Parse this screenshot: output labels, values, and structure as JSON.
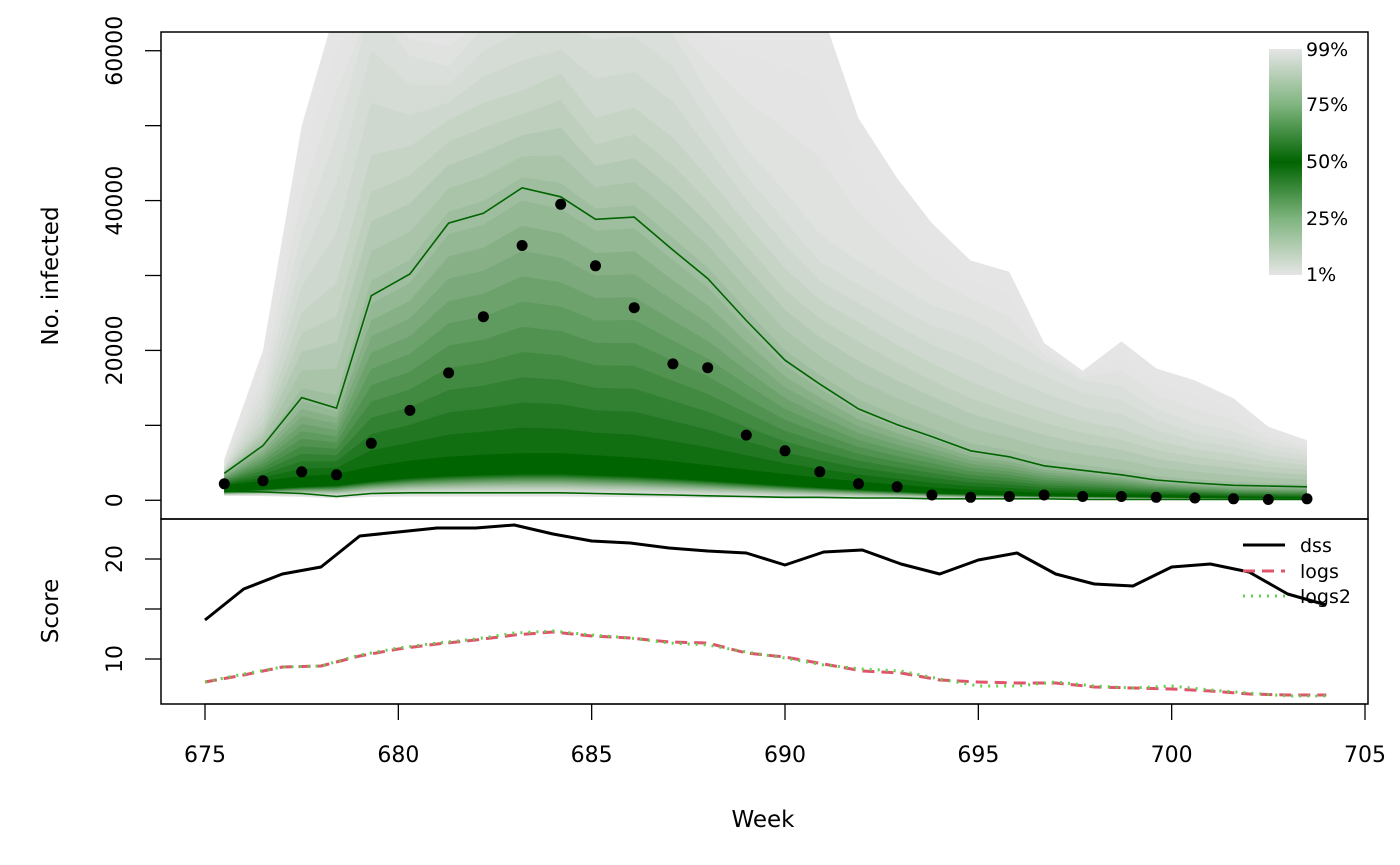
{
  "chart_data": [
    {
      "type": "area",
      "panel": "fan",
      "ylabel": "No. infected",
      "ylim": [
        -2500,
        62500
      ],
      "y_ticks": [
        0,
        20000,
        40000,
        60000
      ],
      "y_tick_labels": [
        "0",
        "20000",
        "40000",
        "60000"
      ],
      "x": [
        675.5,
        676.5,
        677.5,
        678.4,
        679.3,
        680.3,
        681.3,
        682.2,
        683.2,
        684.2,
        685.1,
        686.1,
        687.1,
        688.0,
        689.0,
        690.0,
        690.9,
        691.9,
        692.9,
        693.8,
        694.8,
        695.8,
        696.7,
        697.7,
        698.7,
        699.6,
        700.6,
        701.6,
        702.5,
        703.5
      ],
      "observed": [
        2200,
        2600,
        3800,
        3400,
        7600,
        12000,
        17000,
        24500,
        34000,
        39500,
        31300,
        25700,
        18200,
        17700,
        8700,
        6600,
        3800,
        2200,
        1800,
        700,
        400,
        500,
        700,
        500,
        500,
        400,
        300,
        200,
        100,
        200
      ],
      "upper_line": [
        3600,
        7300,
        13700,
        12300,
        27300,
        30200,
        37000,
        38300,
        41700,
        40500,
        37500,
        37800,
        33400,
        29600,
        24000,
        18700,
        15500,
        12200,
        10100,
        8500,
        6600,
        5800,
        4600,
        4000,
        3400,
        2700,
        2300,
        2000,
        1900,
        1800
      ],
      "lower_line": [
        1200,
        1100,
        900,
        500,
        900,
        1000,
        1000,
        1000,
        1000,
        1000,
        900,
        800,
        700,
        600,
        500,
        400,
        400,
        300,
        300,
        200,
        200,
        200,
        200,
        100,
        100,
        100,
        100,
        100,
        100,
        100
      ],
      "median_band": [
        2000,
        2600,
        3200,
        3500,
        4500,
        5300,
        5800,
        6100,
        6300,
        6300,
        6000,
        5700,
        5200,
        4700,
        4100,
        3500,
        3000,
        2500,
        2100,
        1700,
        1400,
        1200,
        1000,
        900,
        800,
        700,
        600,
        500,
        450,
        400
      ],
      "q99_envelope": [
        5500,
        20000,
        50000,
        66000,
        66000,
        66000,
        66000,
        66000,
        66000,
        66000,
        66000,
        66000,
        66000,
        66000,
        66000,
        66000,
        66000,
        51000,
        43000,
        37000,
        32000,
        30500,
        21000,
        17300,
        21200,
        17600,
        16000,
        13600,
        9800,
        8000
      ],
      "q95_envelope": [
        4500,
        14000,
        35000,
        48000,
        66000,
        59000,
        57500,
        63000,
        66000,
        66000,
        66000,
        66000,
        62000,
        54000,
        46000,
        40000,
        34000,
        31000,
        28000,
        25500,
        24000,
        21000,
        18500,
        16000,
        15000,
        12000,
        10000,
        9000,
        7500,
        6500
      ],
      "q90_envelope": [
        4000,
        10000,
        24000,
        27000,
        44000,
        46000,
        50000,
        52000,
        53500,
        56000,
        49500,
        51000,
        47000,
        42000,
        36000,
        30000,
        26000,
        23000,
        20000,
        17500,
        15000,
        13000,
        11500,
        10000,
        9000,
        7500,
        6500,
        5800,
        5000,
        4500
      ],
      "legend_labels": [
        "99%",
        "75%",
        "50%",
        "25%",
        "1%"
      ],
      "colors": {
        "fan_dark": "#006400",
        "fan_light": "#e5e5e5",
        "points": "#000000",
        "lines": "#006400"
      }
    },
    {
      "type": "line",
      "panel": "score",
      "ylabel": "Score",
      "xlabel": "Week",
      "xlim": [
        675,
        705
      ],
      "x_ticks": [
        675,
        680,
        685,
        690,
        695,
        700,
        705
      ],
      "x_tick_labels": [
        "675",
        "680",
        "685",
        "690",
        "695",
        "700",
        "705"
      ],
      "ylim": [
        5.5,
        24
      ],
      "y_ticks": [
        10,
        15,
        20
      ],
      "y_tick_labels": [
        "10",
        "",
        "20"
      ],
      "x": [
        675,
        676,
        677,
        678,
        679,
        680,
        681,
        682,
        683,
        684,
        685,
        686,
        687,
        688,
        689,
        690,
        691,
        692,
        693,
        694,
        695,
        696,
        697,
        698,
        699,
        700,
        701,
        702,
        703,
        704
      ],
      "series": [
        {
          "name": "dss",
          "color": "#000000",
          "dash": "",
          "values": [
            13.9,
            17.0,
            18.5,
            19.2,
            22.3,
            22.7,
            23.1,
            23.1,
            23.4,
            22.5,
            21.8,
            21.6,
            21.1,
            20.8,
            20.6,
            19.4,
            20.7,
            20.9,
            19.5,
            18.5,
            19.9,
            20.6,
            18.5,
            17.5,
            17.3,
            19.2,
            19.5,
            18.7,
            16.5,
            15.4
          ]
        },
        {
          "name": "logs",
          "color": "#DF536B",
          "dash": "12 7",
          "values": [
            7.7,
            8.4,
            9.2,
            9.3,
            10.3,
            11.0,
            11.5,
            11.9,
            12.4,
            12.7,
            12.3,
            12.1,
            11.7,
            11.6,
            10.6,
            10.2,
            9.5,
            8.8,
            8.6,
            7.9,
            7.7,
            7.6,
            7.6,
            7.2,
            7.1,
            7.0,
            6.8,
            6.5,
            6.4,
            6.4
          ]
        },
        {
          "name": "logs2",
          "color": "#61D04F",
          "dash": "2 6",
          "values": [
            7.7,
            8.5,
            9.2,
            9.3,
            10.4,
            11.1,
            11.6,
            12.0,
            12.6,
            12.8,
            12.4,
            12.1,
            11.6,
            11.4,
            10.7,
            10.1,
            9.4,
            9.0,
            8.8,
            8.0,
            7.3,
            7.3,
            7.7,
            7.3,
            7.1,
            7.3,
            6.9,
            6.6,
            6.3,
            6.3
          ]
        }
      ]
    }
  ]
}
